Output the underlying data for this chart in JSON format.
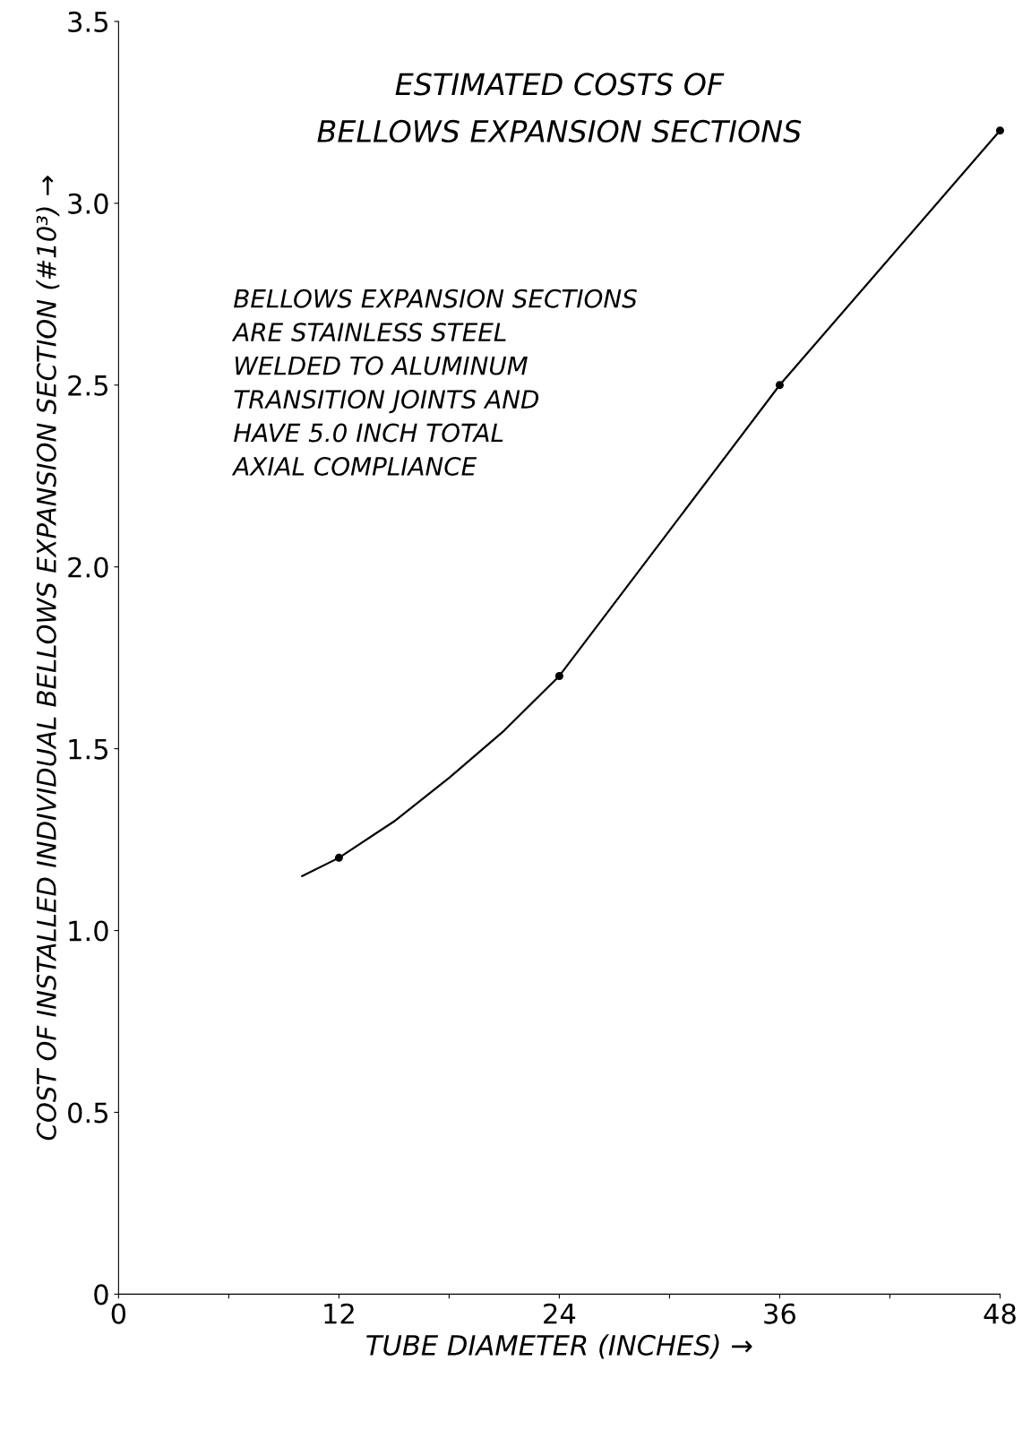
{
  "chart_data": {
    "type": "line",
    "title": "ESTIMATED COSTS OF\nBELLOWS EXPANSION SECTIONS",
    "xlabel": "TUBE DIAMETER (INCHES) →",
    "ylabel": "COST OF INSTALLED INDIVIDUAL BELLOWS EXPANSION SECTION (#10³) →",
    "annotations": [
      "BELLOWS EXPANSION SECTIONS\nARE STAINLESS STEEL\nWELDED TO ALUMINUM\nTRANSITION JOINTS AND\nHAVE 5.0 INCH TOTAL\nAXIAL COMPLIANCE"
    ],
    "series": [
      {
        "color": "#000000",
        "x": [
          10,
          12,
          15,
          18,
          21,
          24,
          30,
          36,
          42,
          48
        ],
        "values": [
          1.15,
          1.2,
          1.3,
          1.42,
          1.55,
          1.7,
          2.1,
          2.5,
          2.85,
          3.2
        ]
      },
      {
        "type": "scatter",
        "color": "#000000",
        "marker": "circle",
        "x": [
          12,
          24,
          36,
          48
        ],
        "values": [
          1.2,
          1.7,
          2.5,
          3.2
        ]
      }
    ],
    "xlim": [
      0,
      48
    ],
    "ylim": [
      0,
      3.5
    ],
    "xticks": [
      0,
      {
        "value": 6,
        "label": null
      },
      12,
      {
        "value": 18,
        "label": null
      },
      24,
      {
        "value": 30,
        "label": null
      },
      36,
      {
        "value": 42,
        "label": null
      },
      48
    ],
    "yticks": [
      0,
      0.5,
      {
        "value": 1,
        "label": "1.0"
      },
      1.5,
      {
        "value": 2,
        "label": "2.0"
      },
      2.5,
      {
        "value": 3,
        "label": "3.0"
      },
      3.5
    ],
    "grid": false,
    "legend": false
  }
}
